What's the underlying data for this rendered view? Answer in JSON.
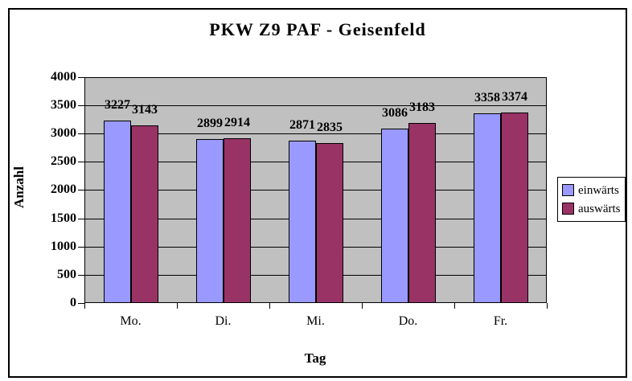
{
  "chart_data": {
    "type": "bar",
    "title": "PKW Z9 PAF - Geisenfeld",
    "xlabel": "Tag",
    "ylabel": "Anzahl",
    "categories": [
      "Mo.",
      "Di.",
      "Mi.",
      "Do.",
      "Fr."
    ],
    "series": [
      {
        "name": "einwärts",
        "color": "#9999FF",
        "values": [
          3227,
          2899,
          2871,
          3086,
          3358
        ]
      },
      {
        "name": "auswärts",
        "color": "#993366",
        "values": [
          3143,
          2914,
          2835,
          3183,
          3374
        ]
      }
    ],
    "ylim": [
      0,
      4000
    ],
    "yticks": [
      0,
      500,
      1000,
      1500,
      2000,
      2500,
      3000,
      3500,
      4000
    ],
    "grid": true,
    "data_labels": true,
    "legend_position": "right",
    "colors": {
      "plot_bg": "#C0C0C0",
      "chart_bg": "#FFFFFF",
      "gridline": "#000000",
      "border": "#000000"
    }
  }
}
